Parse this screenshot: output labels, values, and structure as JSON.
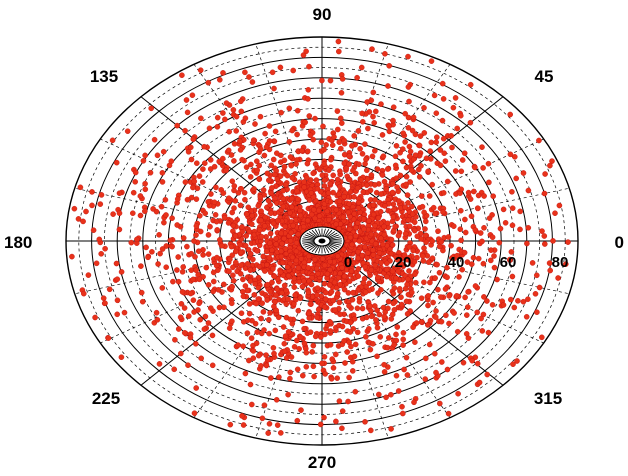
{
  "chart_data": {
    "type": "scatter",
    "coordinate_system": "polar",
    "projection": "elliptical",
    "angle_unit": "degrees",
    "angle_ticks": [
      0,
      45,
      90,
      135,
      180,
      225,
      270,
      315
    ],
    "radial_ticks": [
      0,
      20,
      40,
      60,
      80
    ],
    "rlim": [
      0,
      100
    ],
    "major_rings": [
      10,
      20,
      30,
      40,
      50,
      60,
      70,
      80,
      90,
      100
    ],
    "minor_rings": [
      5,
      15,
      25,
      35,
      45,
      55,
      65,
      75,
      85,
      95
    ],
    "spokes_every_deg": 45,
    "minor_spokes_every_deg": 15,
    "grid": true,
    "marker_color": "#e8321a",
    "marker_edge_color": "#c01010",
    "series": [
      {
        "points": [
          [
            12,
            35
          ],
          [
            8,
            52
          ],
          [
            25,
            60
          ],
          [
            40,
            45
          ],
          [
            5,
            70
          ],
          [
            18,
            78
          ],
          [
            30,
            85
          ],
          [
            55,
            55
          ],
          [
            65,
            62
          ],
          [
            72,
            58
          ],
          [
            80,
            50
          ],
          [
            20,
            22
          ],
          [
            35,
            30
          ],
          [
            50,
            38
          ],
          [
            60,
            48
          ],
          [
            85,
            40
          ],
          [
            95,
            52
          ],
          [
            100,
            45
          ],
          [
            110,
            60
          ],
          [
            120,
            35
          ],
          [
            130,
            55
          ],
          [
            140,
            68
          ],
          [
            150,
            42
          ],
          [
            160,
            60
          ],
          [
            170,
            72
          ],
          [
            180,
            50
          ],
          [
            190,
            65
          ],
          [
            200,
            45
          ],
          [
            210,
            58
          ],
          [
            220,
            70
          ],
          [
            230,
            40
          ],
          [
            240,
            55
          ],
          [
            250,
            62
          ],
          [
            260,
            48
          ],
          [
            270,
            60
          ],
          [
            280,
            75
          ],
          [
            290,
            50
          ],
          [
            300,
            66
          ],
          [
            310,
            44
          ],
          [
            320,
            58
          ],
          [
            330,
            70
          ],
          [
            340,
            52
          ],
          [
            350,
            64
          ],
          [
            355,
            40
          ],
          [
            15,
            90
          ],
          [
            110,
            88
          ],
          [
            200,
            85
          ],
          [
            300,
            92
          ],
          [
            45,
            82
          ],
          [
            135,
            80
          ],
          [
            225,
            78
          ],
          [
            315,
            83
          ],
          [
            75,
            95
          ],
          [
            165,
            93
          ],
          [
            255,
            90
          ],
          [
            345,
            88
          ],
          [
            60,
            25
          ],
          [
            150,
            20
          ],
          [
            240,
            28
          ],
          [
            330,
            24
          ],
          [
            95,
            15
          ],
          [
            185,
            18
          ],
          [
            275,
            12
          ],
          [
            5,
            30
          ]
        ]
      }
    ]
  }
}
